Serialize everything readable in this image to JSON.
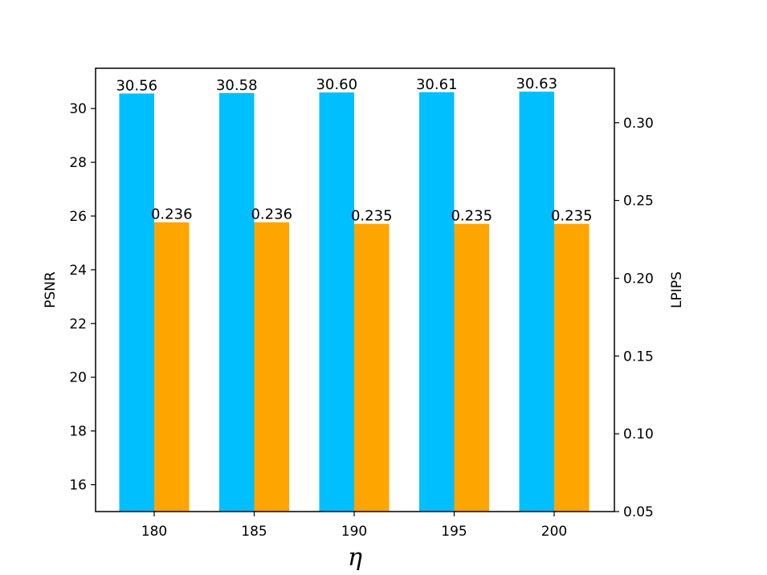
{
  "chart_data": {
    "type": "bar",
    "categories": [
      "180",
      "185",
      "190",
      "195",
      "200"
    ],
    "xlabel": "η",
    "left_axis": {
      "label": "PSNR",
      "ylim": [
        15,
        31.5
      ],
      "ticks": [
        "16",
        "18",
        "20",
        "22",
        "24",
        "26",
        "28",
        "30"
      ]
    },
    "right_axis": {
      "label": "LPIPS",
      "ylim": [
        0.05,
        0.335
      ],
      "ticks": [
        "0.05",
        "0.10",
        "0.15",
        "0.20",
        "0.25",
        "0.30"
      ]
    },
    "series": [
      {
        "axis": "left",
        "color": "#00BFFF",
        "values": [
          30.56,
          30.58,
          30.6,
          30.61,
          30.63
        ],
        "labels": [
          "30.56",
          "30.58",
          "30.60",
          "30.61",
          "30.63"
        ]
      },
      {
        "axis": "right",
        "color": "#FFA500",
        "values": [
          0.236,
          0.236,
          0.235,
          0.235,
          0.235
        ],
        "labels": [
          "0.236",
          "0.236",
          "0.235",
          "0.235",
          "0.235"
        ]
      }
    ],
    "grid": false,
    "legend": "none"
  }
}
